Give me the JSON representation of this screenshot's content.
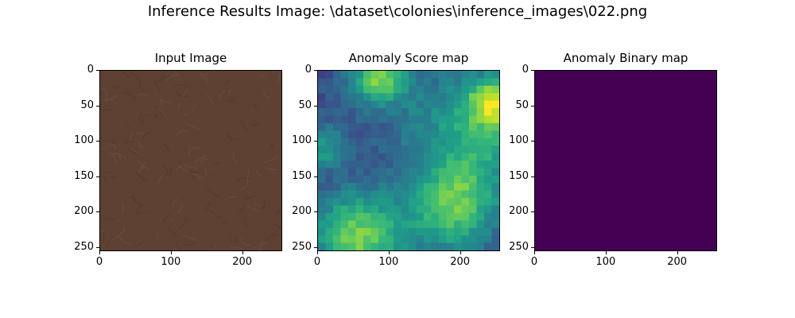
{
  "figure": {
    "title": "Inference Results Image: \\dataset\\colonies\\inference_images\\022.png"
  },
  "chart_data": [
    {
      "type": "heatmap",
      "title": "Input Image",
      "content": "image",
      "xlim": [
        0,
        256
      ],
      "ylim": [
        256,
        0
      ],
      "xticks": [
        0,
        100,
        200
      ],
      "yticks": [
        0,
        50,
        100,
        150,
        200,
        250
      ],
      "base_color": "#5e4133"
    },
    {
      "type": "heatmap",
      "title": "Anomaly Score map",
      "content": "viridis",
      "xlim": [
        0,
        256
      ],
      "ylim": [
        256,
        0
      ],
      "xticks": [
        0,
        100,
        200
      ],
      "yticks": [
        0,
        50,
        100,
        150,
        200,
        250
      ],
      "colormap": "viridis"
    },
    {
      "type": "heatmap",
      "title": "Anomaly Binary map",
      "content": "binary",
      "xlim": [
        0,
        256
      ],
      "ylim": [
        256,
        0
      ],
      "xticks": [
        0,
        100,
        200
      ],
      "yticks": [
        0,
        50,
        100,
        150,
        200,
        250
      ],
      "fill_color": "#440154"
    }
  ]
}
